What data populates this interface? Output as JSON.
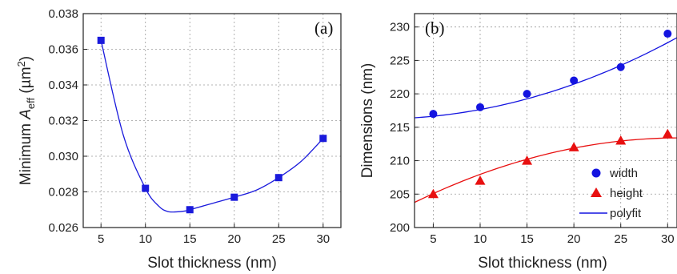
{
  "chart_data": [
    {
      "panel_label": "(a)",
      "type": "line",
      "xlabel": "Slot thickness (nm)",
      "ylabel_prefix": "Minimum ",
      "ylabel_var": "A",
      "ylabel_sub": "eff",
      "ylabel_unit_open": " (µm",
      "ylabel_unit_sup": "2",
      "ylabel_unit_close": ")",
      "xlim": [
        3,
        32
      ],
      "ylim": [
        0.026,
        0.038
      ],
      "xticks": [
        5,
        10,
        15,
        20,
        25,
        30
      ],
      "yticks": [
        0.026,
        0.028,
        0.03,
        0.032,
        0.034,
        0.036,
        0.038
      ],
      "ytick_labels": [
        "0.026",
        "0.028",
        "0.030",
        "0.032",
        "0.034",
        "0.036",
        "0.038"
      ],
      "grid": true,
      "series": [
        {
          "marker": "square",
          "color": "#1a1adc",
          "x": [
            5,
            10,
            15,
            20,
            25,
            30
          ],
          "y": [
            0.0365,
            0.0282,
            0.027,
            0.0277,
            0.0288,
            0.031
          ]
        }
      ],
      "curve": {
        "color": "#1a1adc",
        "x": [
          5,
          7.5,
          10,
          11.5,
          12.5,
          13.5,
          14.5,
          15,
          17.5,
          20,
          22.5,
          25,
          27.5,
          30
        ],
        "y": [
          0.0365,
          0.0312,
          0.0282,
          0.0272,
          0.0269,
          0.02688,
          0.02693,
          0.027,
          0.02735,
          0.0277,
          0.0281,
          0.0288,
          0.0297,
          0.031
        ]
      }
    },
    {
      "panel_label": "(b)",
      "type": "scatter",
      "xlabel": "Slot thickness (nm)",
      "ylabel": "Dimensions (nm)",
      "xlim": [
        3,
        31
      ],
      "ylim": [
        200,
        232
      ],
      "xticks": [
        5,
        10,
        15,
        20,
        25,
        30
      ],
      "xtick_labels": [
        "5",
        "10",
        "15",
        "20",
        "25",
        "30"
      ],
      "yticks": [
        200,
        205,
        210,
        215,
        220,
        225,
        230
      ],
      "grid": true,
      "legend_position": "bottom-right",
      "series": [
        {
          "name": "width",
          "marker": "circle",
          "color": "#1414e0",
          "x": [
            5,
            10,
            15,
            20,
            25,
            30
          ],
          "y": [
            217,
            218,
            220,
            222,
            224,
            229
          ]
        },
        {
          "name": "height",
          "marker": "triangle",
          "color": "#e81010",
          "x": [
            5,
            10,
            15,
            20,
            25,
            30
          ],
          "y": [
            205,
            207,
            210,
            212,
            213,
            214
          ]
        }
      ],
      "fits": [
        {
          "name": "polyfit",
          "color": "#1414e0",
          "coeffs": [
            216.25,
            0.02,
            0.012
          ]
        },
        {
          "name": "polyfit",
          "color": "#e81010",
          "coeffs": [
            201.6,
            0.756,
            -0.0121
          ]
        }
      ]
    }
  ]
}
